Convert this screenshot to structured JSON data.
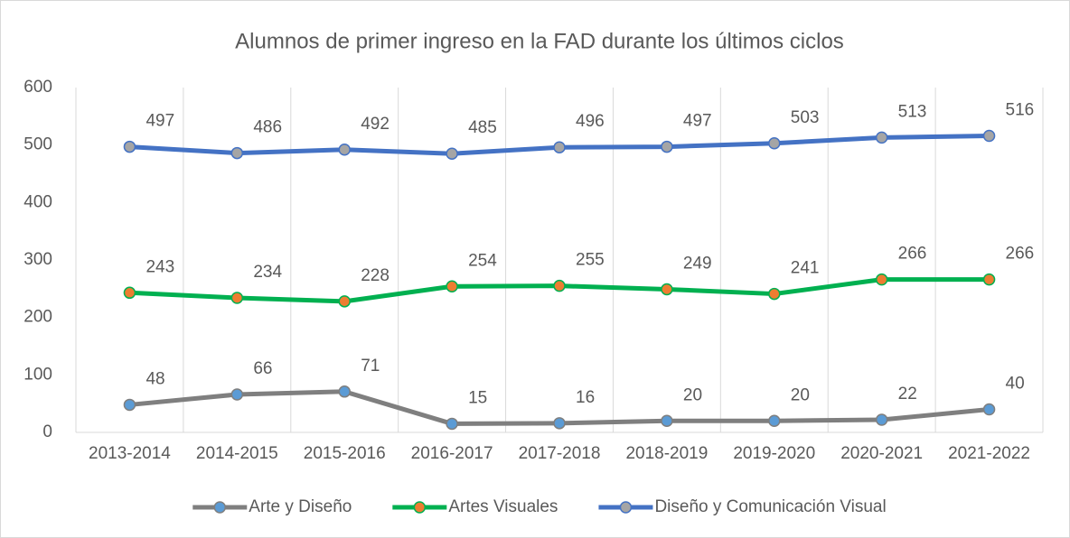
{
  "chart_data": {
    "type": "line",
    "title": "Alumnos de primer ingreso en la FAD durante los últimos ciclos",
    "categories": [
      "2013-2014",
      "2014-2015",
      "2015-2016",
      "2016-2017",
      "2017-2018",
      "2018-2019",
      "2019-2020",
      "2020-2021",
      "2021-2022"
    ],
    "series": [
      {
        "name": "Arte y Diseño",
        "color": "#7f7f7f",
        "marker_color": "#5b9bd5",
        "values": [
          48,
          66,
          71,
          15,
          16,
          20,
          20,
          22,
          40
        ]
      },
      {
        "name": "Artes Visuales",
        "color": "#00b050",
        "marker_color": "#ed7d31",
        "values": [
          243,
          234,
          228,
          254,
          255,
          249,
          241,
          266,
          266
        ]
      },
      {
        "name": "Diseño y Comunicación Visual",
        "color": "#4472c4",
        "marker_color": "#a5a5a5",
        "values": [
          497,
          486,
          492,
          485,
          496,
          497,
          503,
          513,
          516
        ]
      }
    ],
    "ylim": [
      0,
      600
    ],
    "yticks": [
      0,
      100,
      200,
      300,
      400,
      500,
      600
    ],
    "grid": true,
    "legend": "bottom"
  }
}
